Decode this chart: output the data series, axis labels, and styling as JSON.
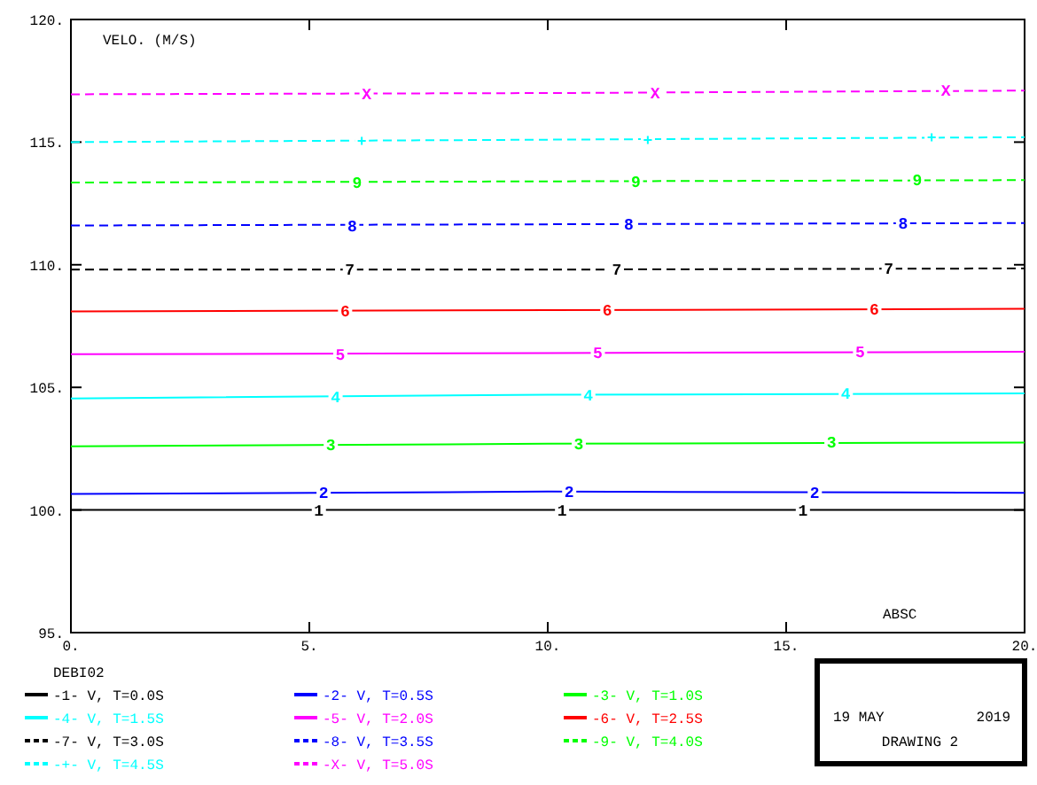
{
  "chart_data": {
    "type": "line",
    "ylabel": "VELO. (M/S)",
    "xlabel": "ABSC",
    "legend_title": "DEBI02",
    "legend": "bottom",
    "grid": false,
    "xlim": [
      0,
      20
    ],
    "xticks": [
      {
        "value": 0,
        "label": "0."
      },
      {
        "value": 5,
        "label": "5."
      },
      {
        "value": 10,
        "label": "10."
      },
      {
        "value": 15,
        "label": "15."
      },
      {
        "value": 20,
        "label": "20."
      }
    ],
    "ylim": [
      95,
      120
    ],
    "yticks": [
      {
        "value": 95,
        "label": "95."
      },
      {
        "value": 100,
        "label": "100."
      },
      {
        "value": 105,
        "label": "105."
      },
      {
        "value": 110,
        "label": "110."
      },
      {
        "value": 115,
        "label": "115."
      },
      {
        "value": 120,
        "label": "120."
      }
    ],
    "x": [
      0,
      10,
      20
    ],
    "series": [
      {
        "name": "-1- V, T=0.0S",
        "color": "#000000",
        "line_style": "solid",
        "values": [
          100.0,
          100.0,
          100.0
        ]
      },
      {
        "name": "-2- V, T=0.5S",
        "color": "#0000ff",
        "line_style": "solid",
        "values": [
          100.65,
          100.75,
          100.7
        ]
      },
      {
        "name": "-3- V, T=1.0S",
        "color": "#00ff00",
        "line_style": "solid",
        "values": [
          102.6,
          102.7,
          102.75
        ]
      },
      {
        "name": "-4- V, T=1.5S",
        "color": "#00ffff",
        "line_style": "solid",
        "values": [
          104.55,
          104.7,
          104.75
        ]
      },
      {
        "name": "-5- V, T=2.0S",
        "color": "#ff00ff",
        "line_style": "solid",
        "values": [
          106.35,
          106.4,
          106.45
        ]
      },
      {
        "name": "-6- V, T=2.5S",
        "color": "#ff0000",
        "line_style": "solid",
        "values": [
          108.1,
          108.15,
          108.2
        ]
      },
      {
        "name": "-7- V, T=3.0S",
        "color": "#000000",
        "line_style": "dashed",
        "values": [
          109.8,
          109.8,
          109.85
        ]
      },
      {
        "name": "-8- V, T=3.5S",
        "color": "#0000ff",
        "line_style": "dashed",
        "values": [
          111.6,
          111.65,
          111.7
        ]
      },
      {
        "name": "-9- V, T=4.0S",
        "color": "#00ff00",
        "line_style": "dashed",
        "values": [
          113.35,
          113.4,
          113.45
        ]
      },
      {
        "name": "-+- V, T=4.5S",
        "color": "#00ffff",
        "line_style": "dashed",
        "values": [
          115.0,
          115.1,
          115.2
        ]
      },
      {
        "name": "-X- V, T=5.0S",
        "color": "#ff00ff",
        "line_style": "dashed",
        "values": [
          116.95,
          117.0,
          117.1
        ]
      }
    ],
    "annotations": [
      "19 MAY",
      "2019",
      "DRAWING  2",
      {
        "text": "1",
        "x": 5.2,
        "y": 100.0
      },
      {
        "text": "1",
        "x": 10.3,
        "y": 100.0
      },
      {
        "text": "1",
        "x": 15.35,
        "y": 100.0
      },
      {
        "text": "2",
        "x": 5.3,
        "y": 100.7
      },
      {
        "text": "2",
        "x": 10.45,
        "y": 100.75
      },
      {
        "text": "2",
        "x": 15.6,
        "y": 100.7
      },
      {
        "text": "3",
        "x": 5.45,
        "y": 102.65
      },
      {
        "text": "3",
        "x": 10.65,
        "y": 102.7
      },
      {
        "text": "3",
        "x": 15.95,
        "y": 102.75
      },
      {
        "text": "4",
        "x": 5.55,
        "y": 104.6
      },
      {
        "text": "4",
        "x": 10.85,
        "y": 104.7
      },
      {
        "text": "4",
        "x": 16.25,
        "y": 104.75
      },
      {
        "text": "5",
        "x": 5.65,
        "y": 106.35
      },
      {
        "text": "5",
        "x": 11.05,
        "y": 106.4
      },
      {
        "text": "5",
        "x": 16.55,
        "y": 106.45
      },
      {
        "text": "6",
        "x": 5.75,
        "y": 108.1
      },
      {
        "text": "6",
        "x": 11.25,
        "y": 108.15
      },
      {
        "text": "6",
        "x": 16.85,
        "y": 108.2
      },
      {
        "text": "7",
        "x": 5.85,
        "y": 109.8
      },
      {
        "text": "7",
        "x": 11.45,
        "y": 109.8
      },
      {
        "text": "7",
        "x": 17.15,
        "y": 109.85
      },
      {
        "text": "8",
        "x": 5.9,
        "y": 111.6
      },
      {
        "text": "8",
        "x": 11.7,
        "y": 111.65
      },
      {
        "text": "8",
        "x": 17.45,
        "y": 111.7
      },
      {
        "text": "9",
        "x": 6.0,
        "y": 113.35
      },
      {
        "text": "9",
        "x": 11.85,
        "y": 113.4
      },
      {
        "text": "9",
        "x": 17.75,
        "y": 113.45
      },
      {
        "text": "+",
        "x": 6.1,
        "y": 115.05
      },
      {
        "text": "+",
        "x": 12.1,
        "y": 115.1
      },
      {
        "text": "+",
        "x": 18.05,
        "y": 115.2
      },
      {
        "text": "X",
        "x": 6.2,
        "y": 116.95
      },
      {
        "text": "X",
        "x": 12.25,
        "y": 117.0
      },
      {
        "text": "X",
        "x": 18.35,
        "y": 117.1
      }
    ]
  }
}
